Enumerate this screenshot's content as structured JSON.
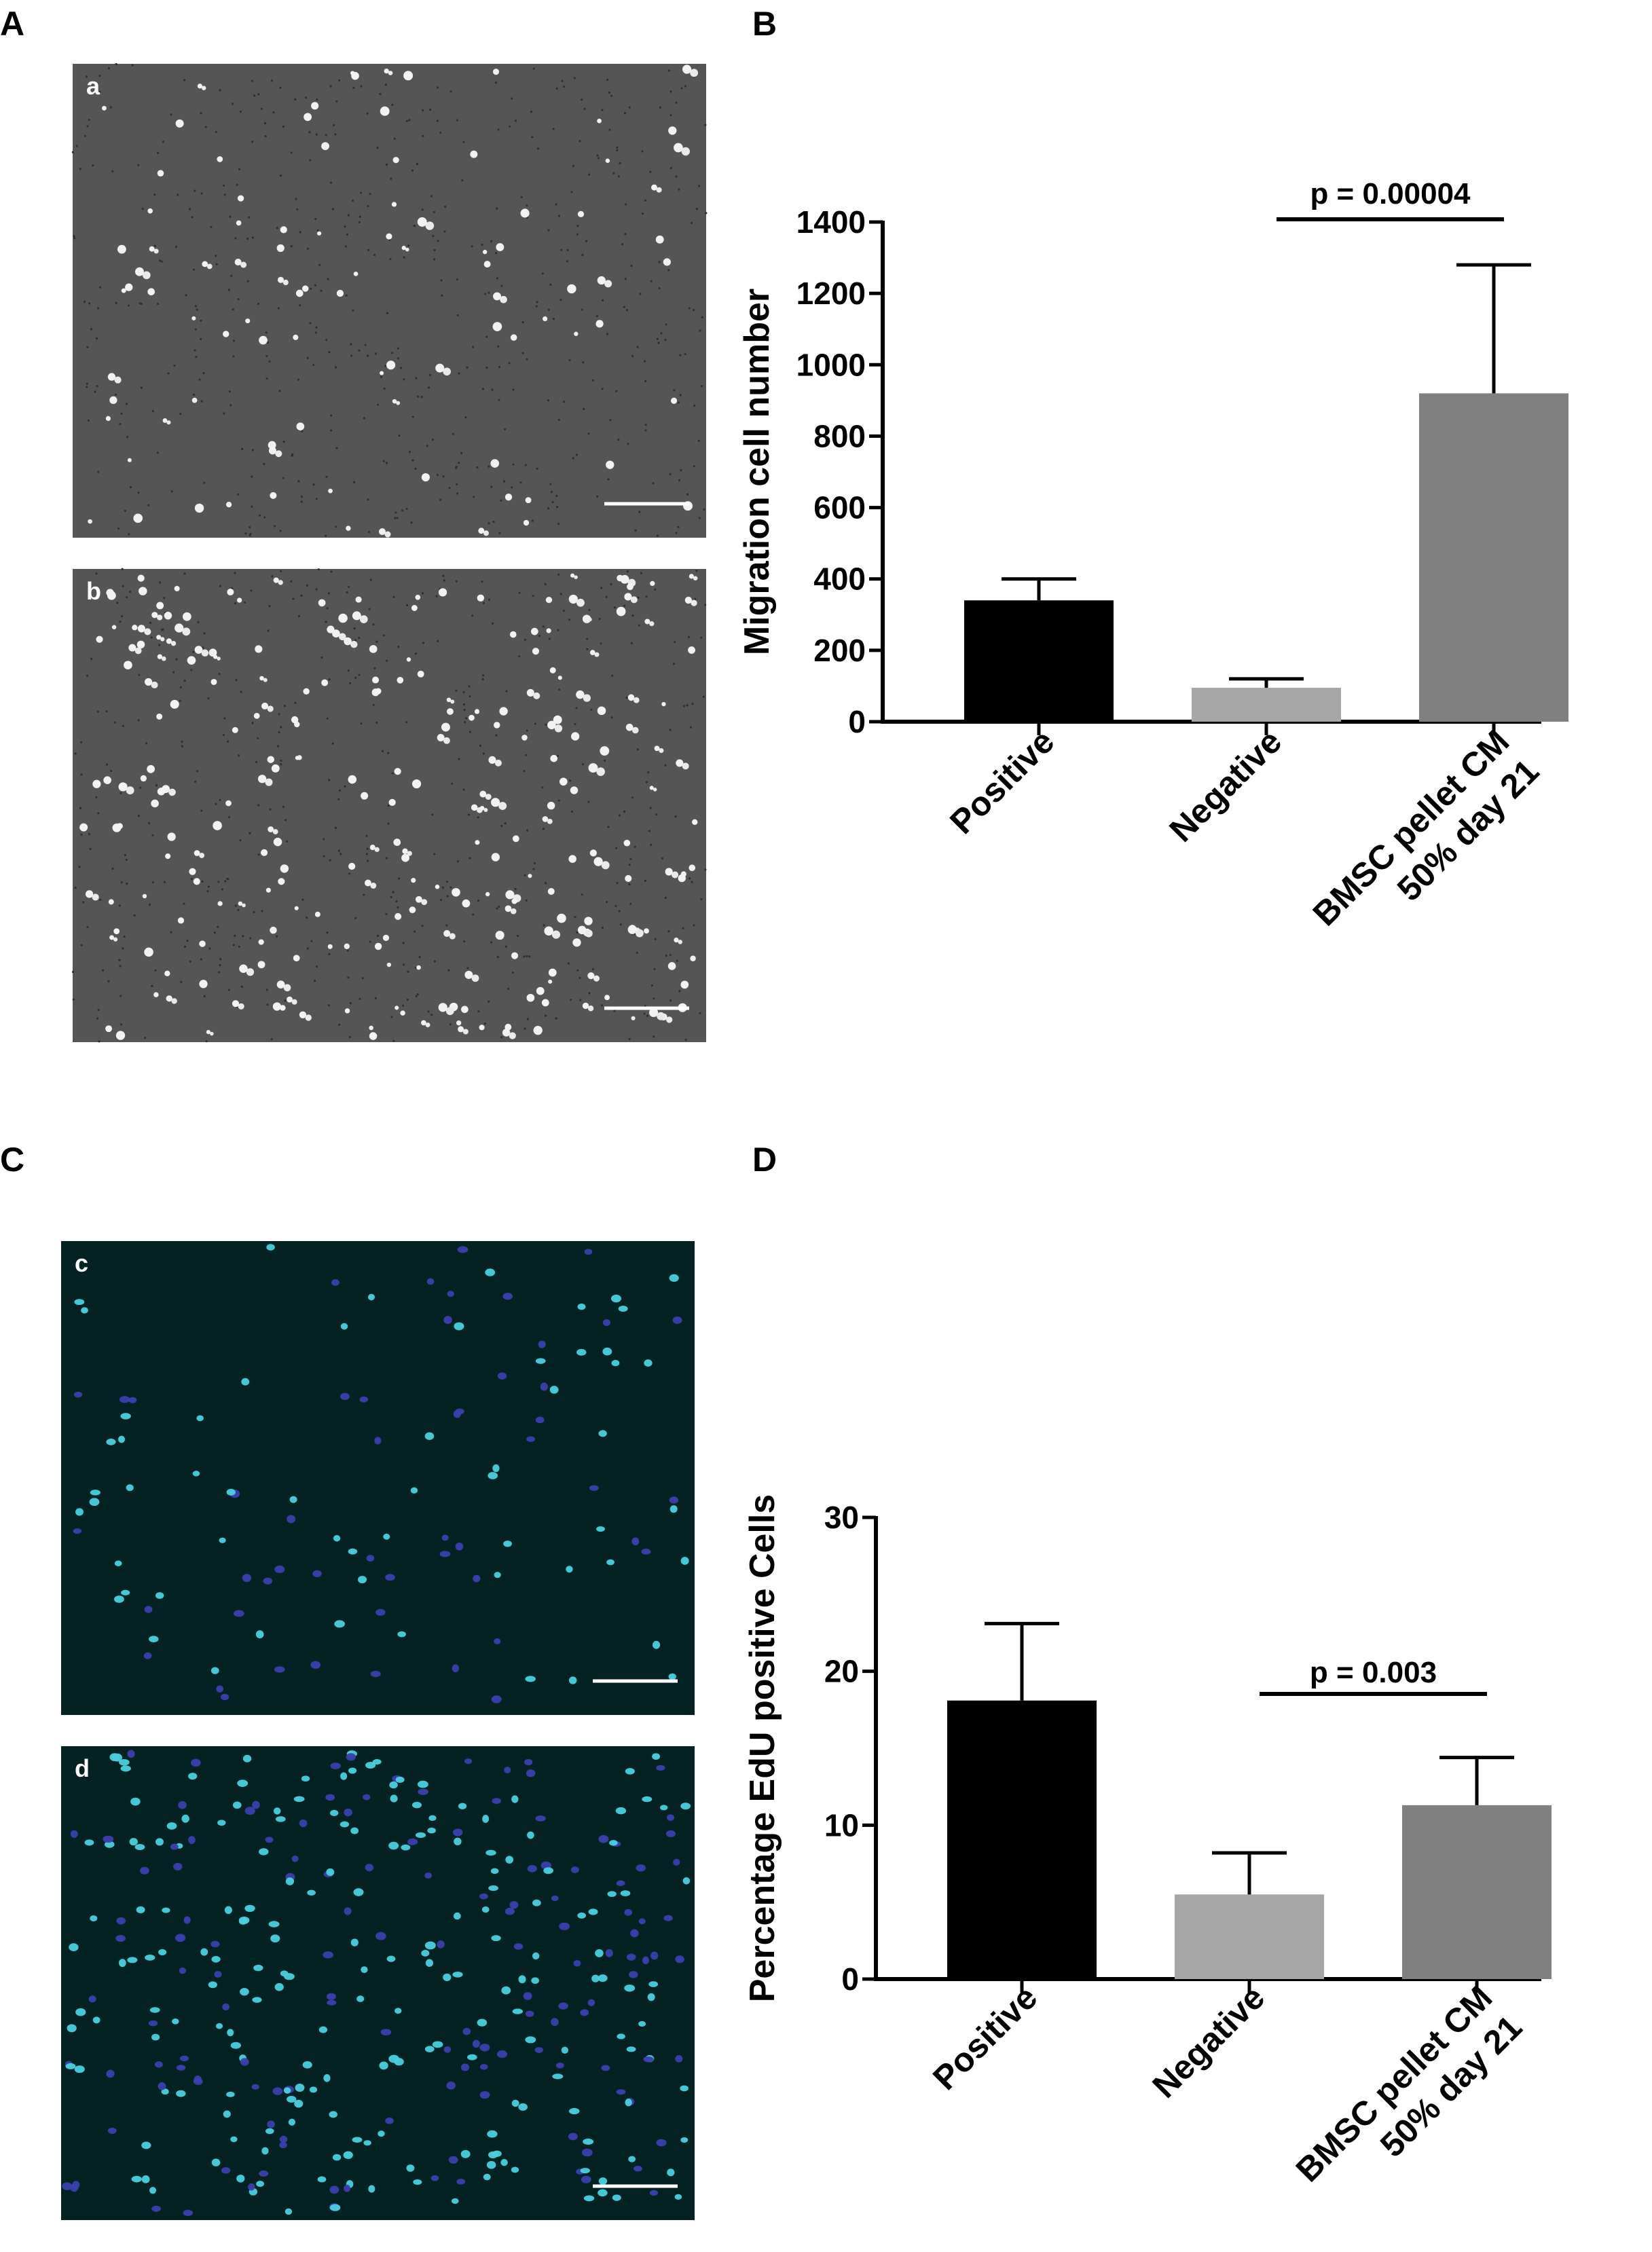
{
  "panels": {
    "A": {
      "letter": "A",
      "images": [
        {
          "label": "a",
          "style": "gray",
          "cells": 95
        },
        {
          "label": "b",
          "style": "gray",
          "cells": 260
        }
      ]
    },
    "C": {
      "letter": "C",
      "images": [
        {
          "label": "c",
          "style": "fluor",
          "cells": 110
        },
        {
          "label": "d",
          "style": "fluor",
          "cells": 340
        }
      ]
    },
    "B": {
      "letter": "B"
    },
    "D": {
      "letter": "D"
    }
  },
  "colors": {
    "positive": "#000000",
    "negative": "#a6a6a6",
    "cm": "#808080",
    "gray_bg": "#555555",
    "fluor_bg": "#052222"
  },
  "chart_data": [
    {
      "id": "B",
      "type": "bar",
      "ylabel": "Migration cell number",
      "categories": [
        [
          "Positive"
        ],
        [
          "Negative"
        ],
        [
          "50% day 21",
          "BMSC pellet CM"
        ]
      ],
      "values": [
        340,
        95,
        920
      ],
      "errors": [
        60,
        25,
        360
      ],
      "ylim": [
        0,
        1400
      ],
      "yticks": [
        0,
        200,
        400,
        600,
        800,
        1000,
        1200,
        1400
      ],
      "annotation": {
        "text": "p = 0.00004",
        "from": 1,
        "to": 2
      }
    },
    {
      "id": "D",
      "type": "bar",
      "ylabel": "Percentage EdU positive Cells",
      "categories": [
        [
          "Positive"
        ],
        [
          "Negative"
        ],
        [
          "50% day 21",
          "BMSC pellet CM"
        ]
      ],
      "values": [
        18.1,
        5.5,
        11.3
      ],
      "errors": [
        5.0,
        2.7,
        3.1
      ],
      "ylim": [
        0,
        30
      ],
      "yticks": [
        0,
        10,
        20,
        30
      ],
      "annotation": {
        "text": "p = 0.003",
        "from": 1,
        "to": 2
      }
    }
  ]
}
